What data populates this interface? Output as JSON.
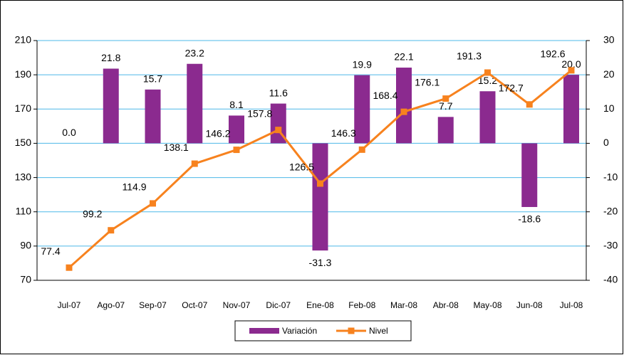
{
  "chart_data": {
    "type": "bar-line",
    "categories": [
      "Jul-07",
      "Ago-07",
      "Sep-07",
      "Oct-07",
      "Nov-07",
      "Dic-07",
      "Ene-08",
      "Feb-08",
      "Mar-08",
      "Abr-08",
      "May-08",
      "Jun-08",
      "Jul-08"
    ],
    "series": [
      {
        "name": "Variación",
        "type": "bar",
        "axis": "y2",
        "color": "#8b2a8f",
        "values": [
          0.0,
          21.8,
          15.7,
          23.2,
          8.1,
          11.6,
          -31.3,
          19.9,
          22.1,
          7.7,
          15.2,
          -18.6,
          20.0
        ],
        "value_labels": [
          "0.0",
          "21.8",
          "15.7",
          "23.2",
          "8.1",
          "11.6",
          "-31.3",
          "19.9",
          "22.1",
          "7.7",
          "15.2",
          "-18.6",
          "20.0"
        ]
      },
      {
        "name": "Nivel",
        "type": "line",
        "axis": "y",
        "color": "#f7821e",
        "values": [
          77.4,
          99.2,
          114.9,
          138.1,
          146.2,
          157.8,
          126.5,
          146.3,
          168.4,
          176.1,
          191.3,
          172.7,
          192.6
        ],
        "value_labels": [
          "77.4",
          "99.2",
          "114.9",
          "138.1",
          "146.2",
          "157.8",
          "126.5",
          "146.3",
          "168.4",
          "176.1",
          "191.3",
          "172.7",
          "192.6"
        ]
      }
    ],
    "ylim": [
      70,
      210
    ],
    "yticks": [
      70,
      90,
      110,
      130,
      150,
      170,
      190,
      210
    ],
    "y2lim": [
      -40,
      30
    ],
    "y2ticks": [
      -40,
      -30,
      -20,
      -10,
      0,
      10,
      20,
      30
    ],
    "grid": true,
    "legend": "bottom"
  }
}
